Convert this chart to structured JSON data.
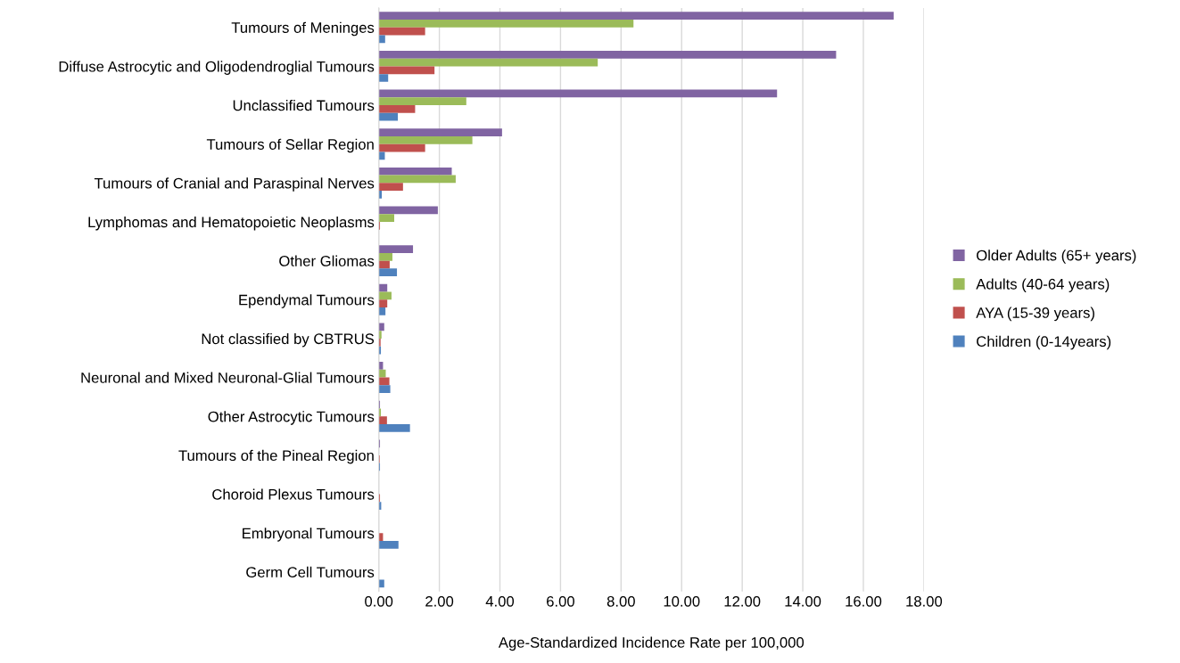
{
  "chart_data": {
    "type": "bar",
    "orientation": "horizontal",
    "xlabel": "Age-Standardized Incidence Rate per 100,000",
    "categories": [
      "Tumours of Meninges",
      "Diffuse Astrocytic and Oligodendroglial Tumours",
      "Unclassified Tumours",
      "Tumours of Sellar Region",
      "Tumours of Cranial and Paraspinal Nerves",
      "Lymphomas and Hematopoietic Neoplasms",
      "Other Gliomas",
      "Ependymal Tumours",
      "Not classified by CBTRUS",
      "Neuronal and Mixed Neuronal-Glial Tumours",
      "Other Astrocytic Tumours",
      "Tumours of the Pineal Region",
      "Choroid Plexus Tumours",
      "Embryonal Tumours",
      "Germ Cell Tumours"
    ],
    "series": [
      {
        "name": "Older Adults (65+ years)",
        "color": "#8064a2",
        "values": [
          17.0,
          15.1,
          13.15,
          4.07,
          2.41,
          1.95,
          1.13,
          0.28,
          0.18,
          0.14,
          0.04,
          0.04,
          null,
          null,
          0.0
        ]
      },
      {
        "name": "Adults (40-64 years)",
        "color": "#9bbb59",
        "values": [
          8.41,
          7.23,
          2.89,
          3.09,
          2.54,
          0.51,
          0.45,
          0.42,
          0.09,
          0.23,
          0.07,
          null,
          null,
          null,
          0.0
        ]
      },
      {
        "name": "AYA (15-39 years)",
        "color": "#c0504d",
        "values": [
          1.53,
          1.84,
          1.2,
          1.53,
          0.8,
          0.04,
          0.36,
          0.28,
          0.06,
          0.35,
          0.27,
          0.03,
          0.04,
          0.14,
          null
        ]
      },
      {
        "name": "Children (0-14years)",
        "color": "#4f81bd",
        "values": [
          0.21,
          0.31,
          0.63,
          0.2,
          0.1,
          0.0,
          0.6,
          0.22,
          0.07,
          0.38,
          1.03,
          0.04,
          0.08,
          0.65,
          0.18
        ]
      }
    ],
    "xlim": [
      0,
      18
    ],
    "xticks": [
      {
        "value": 0,
        "label": "0.00"
      },
      {
        "value": 2,
        "label": "2.00"
      },
      {
        "value": 4,
        "label": "4.00"
      },
      {
        "value": 6,
        "label": "6.00"
      },
      {
        "value": 8,
        "label": "8.00"
      },
      {
        "value": 10,
        "label": "10.00"
      },
      {
        "value": 12,
        "label": "12.00"
      },
      {
        "value": 14,
        "label": "14.00"
      },
      {
        "value": 16,
        "label": "16.00"
      },
      {
        "value": 18,
        "label": "18.00"
      }
    ],
    "grid": "x",
    "legend": "right"
  }
}
